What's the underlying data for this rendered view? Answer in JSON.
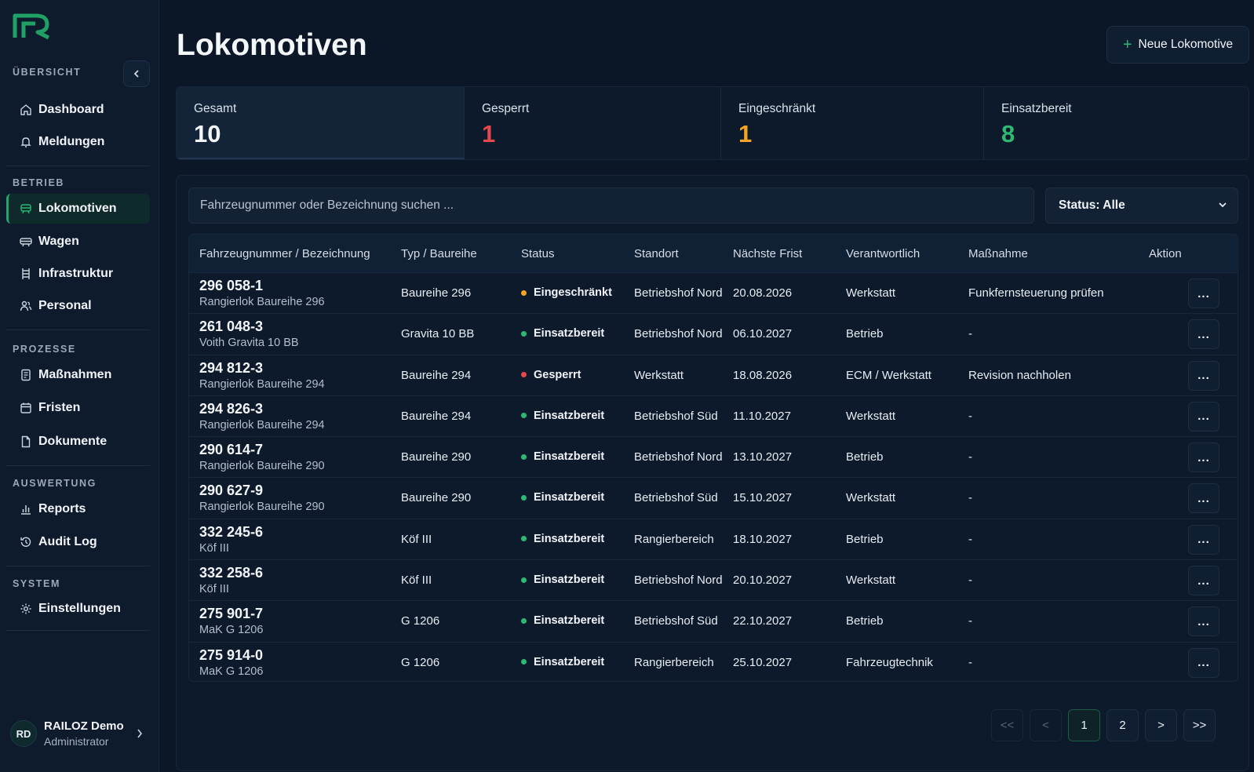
{
  "sidebar": {
    "sections": [
      "ÜBERSICHT",
      "BETRIEB",
      "PROZESSE",
      "AUSWERTUNG",
      "SYSTEM"
    ],
    "items": [
      {
        "label": "Dashboard",
        "icon": "home-icon"
      },
      {
        "label": "Meldungen",
        "icon": "bell-icon"
      },
      {
        "label": "Lokomotiven",
        "icon": "locomotive-icon",
        "active": true
      },
      {
        "label": "Wagen",
        "icon": "wagon-icon"
      },
      {
        "label": "Infrastruktur",
        "icon": "track-icon"
      },
      {
        "label": "Personal",
        "icon": "people-icon"
      },
      {
        "label": "Maßnahmen",
        "icon": "document-list-icon"
      },
      {
        "label": "Fristen",
        "icon": "calendar-icon"
      },
      {
        "label": "Dokumente",
        "icon": "file-icon"
      },
      {
        "label": "Reports",
        "icon": "bar-chart-icon"
      },
      {
        "label": "Audit Log",
        "icon": "history-icon"
      },
      {
        "label": "Einstellungen",
        "icon": "gear-icon"
      }
    ],
    "user": {
      "initials": "RD",
      "name": "RAILOZ Demo",
      "role": "Administrator"
    }
  },
  "header": {
    "title": "Lokomotiven",
    "new_button": "Neue Lokomotive"
  },
  "stats": [
    {
      "label": "Gesamt",
      "value": "10",
      "color": "#f4f7fa"
    },
    {
      "label": "Gesperrt",
      "value": "1",
      "color": "#e5484d"
    },
    {
      "label": "Eingeschränkt",
      "value": "1",
      "color": "#f5a524"
    },
    {
      "label": "Einsatzbereit",
      "value": "8",
      "color": "#2fb873"
    }
  ],
  "filters": {
    "search_placeholder": "Fahrzeugnummer oder Bezeichnung suchen ...",
    "status_select": "Status: Alle"
  },
  "table": {
    "columns": [
      "Fahrzeugnummer / Bezeichnung",
      "Typ / Baureihe",
      "Status",
      "Standort",
      "Nächste Frist",
      "Verantwortlich",
      "Maßnahme",
      "Aktion"
    ],
    "status_colors": {
      "Eingeschränkt": "#f5a524",
      "Einsatzbereit": "#2fb873",
      "Gesperrt": "#e5484d"
    },
    "action_label": "...",
    "rows": [
      {
        "num": "296 058-1",
        "desc": "Rangierlok Baureihe 296",
        "typ": "Baureihe 296",
        "status": "Eingeschränkt",
        "standort": "Betriebshof Nord",
        "frist": "20.08.2026",
        "verantwortlich": "Werkstatt",
        "massnahme": "Funkfernsteuerung prüfen"
      },
      {
        "num": "261 048-3",
        "desc": "Voith Gravita 10 BB",
        "typ": "Gravita 10 BB",
        "status": "Einsatzbereit",
        "standort": "Betriebshof Nord",
        "frist": "06.10.2027",
        "verantwortlich": "Betrieb",
        "massnahme": "-"
      },
      {
        "num": "294 812-3",
        "desc": "Rangierlok Baureihe 294",
        "typ": "Baureihe 294",
        "status": "Gesperrt",
        "standort": "Werkstatt",
        "frist": "18.08.2026",
        "verantwortlich": "ECM / Werkstatt",
        "massnahme": "Revision nachholen"
      },
      {
        "num": "294 826-3",
        "desc": "Rangierlok Baureihe 294",
        "typ": "Baureihe 294",
        "status": "Einsatzbereit",
        "standort": "Betriebshof Süd",
        "frist": "11.10.2027",
        "verantwortlich": "Werkstatt",
        "massnahme": "-"
      },
      {
        "num": "290 614-7",
        "desc": "Rangierlok Baureihe 290",
        "typ": "Baureihe 290",
        "status": "Einsatzbereit",
        "standort": "Betriebshof Nord",
        "frist": "13.10.2027",
        "verantwortlich": "Betrieb",
        "massnahme": "-"
      },
      {
        "num": "290 627-9",
        "desc": "Rangierlok Baureihe 290",
        "typ": "Baureihe 290",
        "status": "Einsatzbereit",
        "standort": "Betriebshof Süd",
        "frist": "15.10.2027",
        "verantwortlich": "Werkstatt",
        "massnahme": "-"
      },
      {
        "num": "332 245-6",
        "desc": "Köf III",
        "typ": "Köf III",
        "status": "Einsatzbereit",
        "standort": "Rangierbereich",
        "frist": "18.10.2027",
        "verantwortlich": "Betrieb",
        "massnahme": "-"
      },
      {
        "num": "332 258-6",
        "desc": "Köf III",
        "typ": "Köf III",
        "status": "Einsatzbereit",
        "standort": "Betriebshof Nord",
        "frist": "20.10.2027",
        "verantwortlich": "Werkstatt",
        "massnahme": "-"
      },
      {
        "num": "275 901-7",
        "desc": "MaK G 1206",
        "typ": "G 1206",
        "status": "Einsatzbereit",
        "standort": "Betriebshof Süd",
        "frist": "22.10.2027",
        "verantwortlich": "Betrieb",
        "massnahme": "-"
      },
      {
        "num": "275 914-0",
        "desc": "MaK G 1206",
        "typ": "G 1206",
        "status": "Einsatzbereit",
        "standort": "Rangierbereich",
        "frist": "25.10.2027",
        "verantwortlich": "Fahrzeugtechnik",
        "massnahme": "-"
      }
    ]
  },
  "pagination": {
    "first": "<<",
    "prev": "<",
    "pages": [
      "1",
      "2"
    ],
    "current": "1",
    "next": ">",
    "last": ">>"
  }
}
